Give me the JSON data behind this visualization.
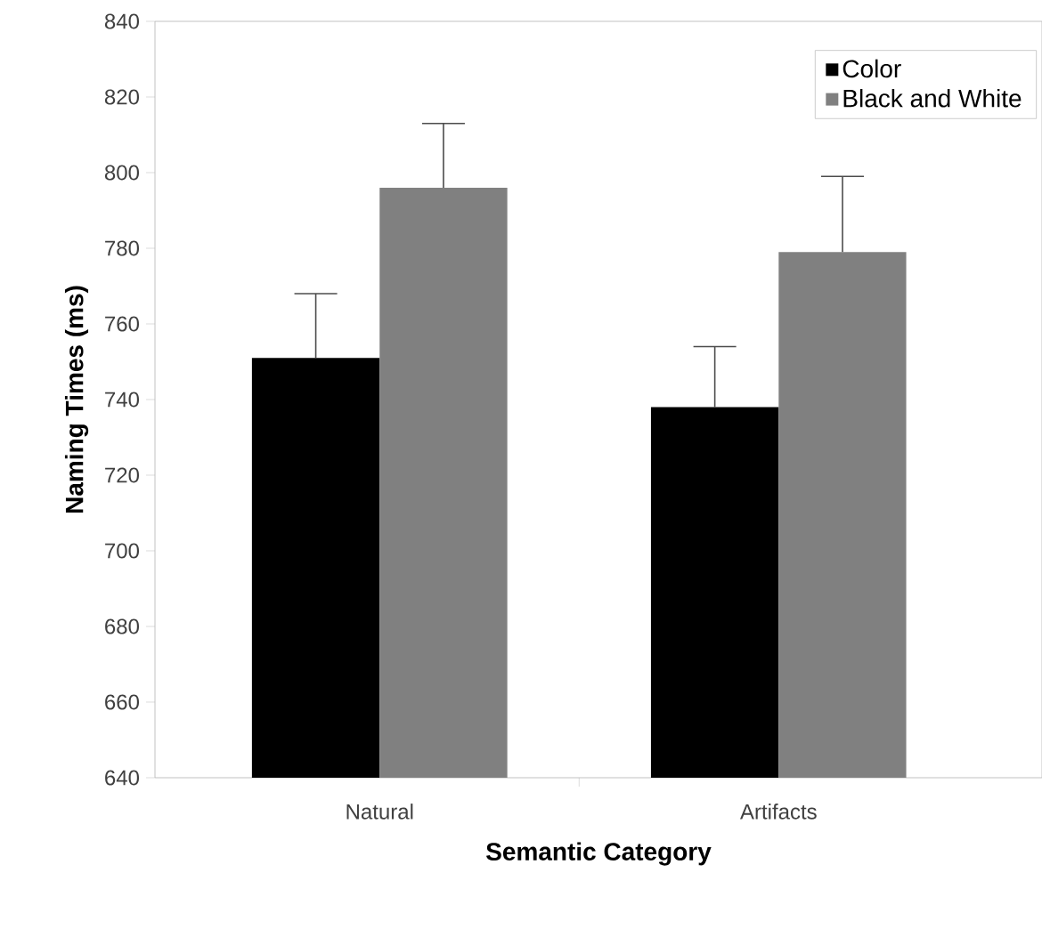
{
  "chart_data": {
    "type": "bar",
    "xlabel": "Semantic Category",
    "ylabel": "Naming Times (ms)",
    "categories": [
      "Natural",
      "Artifacts"
    ],
    "series": [
      {
        "name": "Color",
        "color": "#000000",
        "values": [
          751,
          738
        ],
        "errors": [
          17,
          16
        ]
      },
      {
        "name": "Black and White",
        "color": "#808080",
        "values": [
          796,
          779
        ],
        "errors": [
          17,
          20
        ]
      }
    ],
    "ylim": [
      640,
      840
    ],
    "yticks": [
      640,
      660,
      680,
      700,
      720,
      740,
      760,
      780,
      800,
      820,
      840
    ],
    "legend": "top right",
    "grid": false
  }
}
